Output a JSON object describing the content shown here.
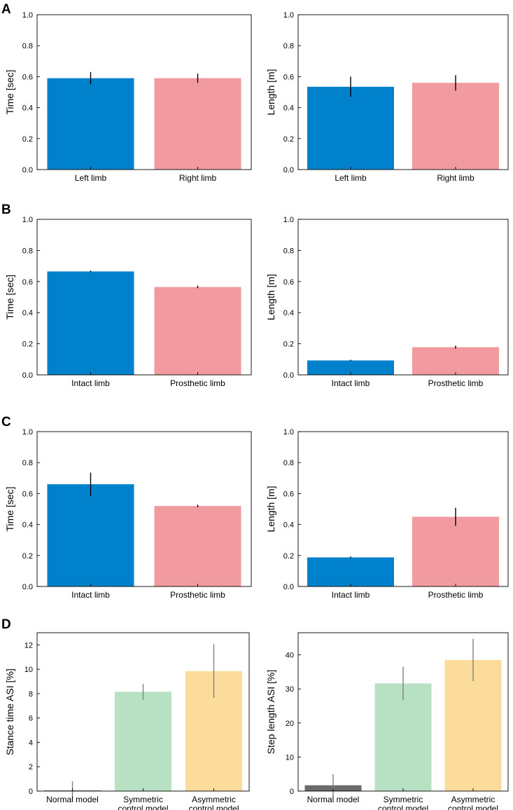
{
  "panel_labels": [
    "A",
    "B",
    "C",
    "D"
  ],
  "colors": {
    "blue": "#0081cc",
    "pink": "#f19ba1",
    "gray": "#6b6b6b",
    "green": "#b8e0c2",
    "orange": "#fcdc9a",
    "error_dark": "#000000",
    "error_light": "#808080"
  },
  "chart_data": [
    {
      "type": "bar",
      "panel": "A",
      "ylabel": "Time [sec]",
      "categories": [
        "Left limb",
        "Right limb"
      ],
      "values": [
        0.59,
        0.59
      ],
      "errors": [
        0.04,
        0.03
      ],
      "ylim": [
        0,
        1.0
      ],
      "yticks": [
        "0.0",
        "0.2",
        "0.4",
        "0.6",
        "0.8",
        "1.0"
      ],
      "bar_colors": [
        "blue",
        "pink"
      ],
      "error_color": "error_dark"
    },
    {
      "type": "bar",
      "panel": "A",
      "ylabel": "Length [m]",
      "categories": [
        "Left limb",
        "Right limb"
      ],
      "values": [
        0.535,
        0.56
      ],
      "errors": [
        0.065,
        0.05
      ],
      "ylim": [
        0,
        1.0
      ],
      "yticks": [
        "0.0",
        "0.2",
        "0.4",
        "0.6",
        "0.8",
        "1.0"
      ],
      "bar_colors": [
        "blue",
        "pink"
      ],
      "error_color": "error_dark"
    },
    {
      "type": "bar",
      "panel": "B",
      "ylabel": "Time [sec]",
      "categories": [
        "Intact limb",
        "Prosthetic limb"
      ],
      "values": [
        0.665,
        0.565
      ],
      "errors": [
        0.005,
        0.008
      ],
      "ylim": [
        0,
        1.0
      ],
      "yticks": [
        "0.0",
        "0.2",
        "0.4",
        "0.6",
        "0.8",
        "1.0"
      ],
      "bar_colors": [
        "blue",
        "pink"
      ],
      "error_color": "error_dark"
    },
    {
      "type": "bar",
      "panel": "B",
      "ylabel": "Length [m]",
      "categories": [
        "Intact limb",
        "Prosthetic limb"
      ],
      "values": [
        0.093,
        0.178
      ],
      "errors": [
        0.004,
        0.01
      ],
      "ylim": [
        0,
        1.0
      ],
      "yticks": [
        "0.0",
        "0.2",
        "0.4",
        "0.6",
        "0.8",
        "1.0"
      ],
      "bar_colors": [
        "blue",
        "pink"
      ],
      "error_color": "error_dark"
    },
    {
      "type": "bar",
      "panel": "C",
      "ylabel": "Time [sec]",
      "categories": [
        "Intact limb",
        "Prosthetic limb"
      ],
      "values": [
        0.66,
        0.52
      ],
      "errors": [
        0.075,
        0.008
      ],
      "ylim": [
        0,
        1.0
      ],
      "yticks": [
        "0.0",
        "0.2",
        "0.4",
        "0.6",
        "0.8",
        "1.0"
      ],
      "bar_colors": [
        "blue",
        "pink"
      ],
      "error_color": "error_dark"
    },
    {
      "type": "bar",
      "panel": "C",
      "ylabel": "Length [m]",
      "categories": [
        "Intact limb",
        "Prosthetic limb"
      ],
      "values": [
        0.188,
        0.45
      ],
      "errors": [
        0.005,
        0.058
      ],
      "ylim": [
        0,
        1.0
      ],
      "yticks": [
        "0.0",
        "0.2",
        "0.4",
        "0.6",
        "0.8",
        "1.0"
      ],
      "bar_colors": [
        "blue",
        "pink"
      ],
      "error_color": "error_dark"
    },
    {
      "type": "bar",
      "panel": "D",
      "ylabel": "Stance time ASI [%]",
      "categories": [
        [
          "Normal model"
        ],
        [
          "Symmetric",
          "control model"
        ],
        [
          "Asymmetric",
          "control model"
        ]
      ],
      "values": [
        0.05,
        8.15,
        9.85
      ],
      "errors": [
        0.75,
        0.65,
        2.2
      ],
      "ylim": [
        0,
        13
      ],
      "ytick_values": [
        0,
        2,
        4,
        6,
        8,
        10,
        12
      ],
      "yticks": [
        "0",
        "2",
        "4",
        "6",
        "8",
        "10",
        "12"
      ],
      "bar_colors": [
        "gray",
        "green",
        "orange"
      ],
      "error_color": "error_light"
    },
    {
      "type": "bar",
      "panel": "D",
      "ylabel": "Step length ASI [%]",
      "categories": [
        [
          "Normal model"
        ],
        [
          "Symmetric",
          "control model"
        ],
        [
          "Asymmetric",
          "control model"
        ]
      ],
      "values": [
        1.7,
        31.6,
        38.5
      ],
      "errors": [
        3.3,
        4.9,
        6.2
      ],
      "ylim": [
        0,
        46.5
      ],
      "ytick_values": [
        0,
        10,
        20,
        30,
        40
      ],
      "yticks": [
        "0",
        "10",
        "20",
        "30",
        "40"
      ],
      "bar_colors": [
        "gray",
        "green",
        "orange"
      ],
      "error_color": "error_light"
    }
  ]
}
